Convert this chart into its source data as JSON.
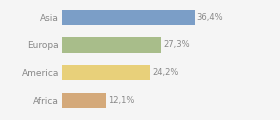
{
  "categories": [
    "Asia",
    "Europa",
    "America",
    "Africa"
  ],
  "values": [
    36.4,
    27.3,
    24.2,
    12.1
  ],
  "labels": [
    "36,4%",
    "27,3%",
    "24,2%",
    "12,1%"
  ],
  "bar_colors": [
    "#7b9ec7",
    "#a8bd8a",
    "#e8d07a",
    "#d4a97a"
  ],
  "background_color": "#f5f5f5",
  "xlim": [
    0,
    46
  ],
  "bar_height": 0.55,
  "label_fontsize": 6.0,
  "tick_fontsize": 6.5,
  "text_color": "#888888"
}
